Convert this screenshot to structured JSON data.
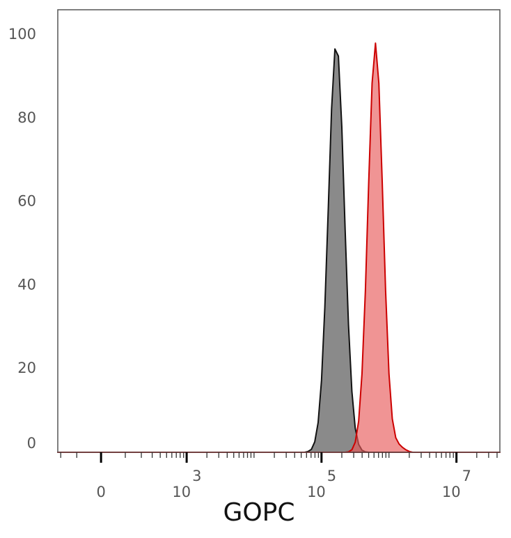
{
  "chart_data": {
    "type": "histogram-overlay",
    "x_label": "GOPC",
    "xscale": "asinh",
    "xscale_cofactor": 108,
    "xlim": [
      -224,
      44000000
    ],
    "ylim": [
      0,
      106
    ],
    "yticks": [
      0,
      20,
      40,
      60,
      80,
      100
    ],
    "xticks": [
      {
        "value": 0,
        "label": "0"
      },
      {
        "value": 1000,
        "label": "10",
        "exponent": "3"
      },
      {
        "value": 100000,
        "label": "10",
        "exponent": "5"
      },
      {
        "value": 10000000,
        "label": "10",
        "exponent": "7"
      }
    ],
    "xminor_ticks": [
      -200,
      -100,
      100,
      200,
      300,
      400,
      500,
      600,
      700,
      800,
      900,
      2000,
      3000,
      4000,
      5000,
      6000,
      7000,
      8000,
      9000,
      10000,
      20000,
      30000,
      40000,
      50000,
      60000,
      70000,
      80000,
      90000,
      200000,
      300000,
      400000,
      500000,
      600000,
      700000,
      800000,
      900000,
      1000000,
      2000000,
      3000000,
      4000000,
      5000000,
      6000000,
      7000000,
      8000000,
      9000000,
      20000000,
      30000000,
      40000000
    ],
    "x": [
      -224,
      25100,
      28200,
      31600,
      35500,
      39800,
      44700,
      50100,
      56200,
      63100,
      70800,
      79400,
      89100,
      100000,
      112000,
      126000,
      141000,
      158000,
      178000,
      200000,
      224000,
      251000,
      282000,
      316000,
      355000,
      398000,
      447000,
      501000,
      562000,
      631000,
      708000,
      794000,
      891000,
      1000000,
      1120000,
      1260000,
      1410000,
      1580000,
      1780000,
      2000000,
      2240000,
      2510000,
      2820000,
      3160000,
      44000000
    ],
    "series": [
      {
        "color": "#8a8a8a",
        "line_color": "#111111",
        "opacity": 1,
        "values": [
          0,
          0,
          0,
          0,
          0,
          0,
          0,
          0,
          0,
          0.2,
          0.7,
          2.5,
          7.1,
          17.2,
          34.7,
          58.4,
          82.2,
          96.6,
          94.9,
          77.9,
          53.3,
          30.6,
          14.6,
          5.8,
          1.9,
          0.5,
          0.1,
          0,
          0,
          0,
          0,
          0,
          0,
          0,
          0,
          0,
          0,
          0,
          0,
          0,
          0,
          0,
          0,
          0,
          0
        ]
      },
      {
        "color": "#e85a5a",
        "line_color": "#cc0000",
        "opacity": 0.65,
        "values": [
          0,
          0,
          0,
          0,
          0,
          0,
          0,
          0,
          0,
          0,
          0,
          0,
          0,
          0,
          0,
          0,
          0,
          0,
          0,
          0,
          0,
          0.1,
          0.6,
          2.4,
          7.4,
          18.8,
          38.7,
          64.8,
          88.4,
          98,
          88.4,
          64.8,
          38.7,
          18.8,
          8,
          3.5,
          2,
          1.2,
          0.6,
          0.2,
          0,
          0,
          0,
          0,
          0
        ]
      }
    ]
  }
}
